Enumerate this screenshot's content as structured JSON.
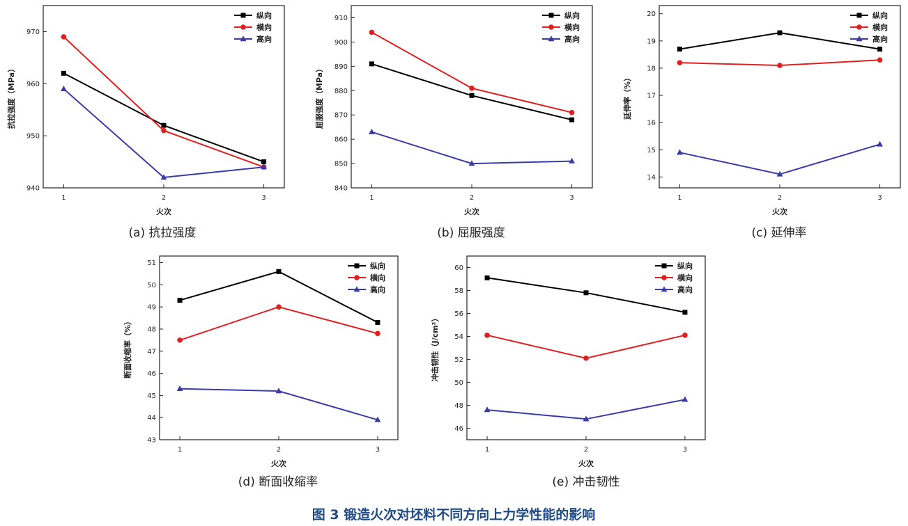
{
  "figure_caption": "图 3 锻造火次对坯料不同方向上力学性能的影响",
  "legend": [
    "纵向",
    "横向",
    "高向"
  ],
  "colors": {
    "纵向": "#000000",
    "横向": "#e02020",
    "高向": "#3a3aa8"
  },
  "chart_data": [
    {
      "type": "line",
      "caption": "(a) 抗拉强度",
      "xlabel": "火次",
      "ylabel": "抗拉强度（MPa）",
      "x": [
        1,
        2,
        3
      ],
      "x_ticks": [
        "1",
        "2",
        "3"
      ],
      "ylim": [
        940,
        975
      ],
      "y_ticks": [
        940,
        950,
        960,
        970
      ],
      "legend_position": "top-right",
      "series": [
        {
          "name": "纵向",
          "marker": "square",
          "values": [
            962,
            952,
            945
          ]
        },
        {
          "name": "横向",
          "marker": "circle",
          "values": [
            969,
            951,
            944
          ]
        },
        {
          "name": "高向",
          "marker": "triangle",
          "values": [
            959,
            942,
            944
          ]
        }
      ]
    },
    {
      "type": "line",
      "caption": "(b) 屈服强度",
      "xlabel": "火次",
      "ylabel": "屈服强度（MPa）",
      "x": [
        1,
        2,
        3
      ],
      "x_ticks": [
        "1",
        "2",
        "3"
      ],
      "ylim": [
        840,
        915
      ],
      "y_ticks": [
        840,
        850,
        860,
        870,
        880,
        890,
        900,
        910
      ],
      "legend_position": "top-right",
      "series": [
        {
          "name": "纵向",
          "marker": "square",
          "values": [
            891,
            878,
            868
          ]
        },
        {
          "name": "横向",
          "marker": "circle",
          "values": [
            904,
            881,
            871
          ]
        },
        {
          "name": "高向",
          "marker": "triangle",
          "values": [
            863,
            850,
            851
          ]
        }
      ]
    },
    {
      "type": "line",
      "caption": "(c) 延伸率",
      "xlabel": "火次",
      "ylabel": "延伸率（%）",
      "x": [
        1,
        2,
        3
      ],
      "x_ticks": [
        "1",
        "2",
        "3"
      ],
      "ylim": [
        13.6,
        20.3
      ],
      "y_ticks": [
        14,
        15,
        16,
        17,
        18,
        19,
        20
      ],
      "legend_position": "top-right",
      "series": [
        {
          "name": "纵向",
          "marker": "square",
          "values": [
            18.7,
            19.3,
            18.7
          ]
        },
        {
          "name": "横向",
          "marker": "circle",
          "values": [
            18.2,
            18.1,
            18.3
          ]
        },
        {
          "name": "高向",
          "marker": "triangle",
          "values": [
            14.9,
            14.1,
            15.2
          ]
        }
      ]
    },
    {
      "type": "line",
      "caption": "(d) 断面收缩率",
      "xlabel": "火次",
      "ylabel": "断面收缩率（%）",
      "x": [
        1,
        2,
        3
      ],
      "x_ticks": [
        "1",
        "2",
        "3"
      ],
      "ylim": [
        43,
        51.3
      ],
      "y_ticks": [
        43,
        44,
        45,
        46,
        47,
        48,
        49,
        50,
        51
      ],
      "legend_position": "top-right",
      "series": [
        {
          "name": "纵向",
          "marker": "square",
          "values": [
            49.3,
            50.6,
            48.3
          ]
        },
        {
          "name": "横向",
          "marker": "circle",
          "values": [
            47.5,
            49.0,
            47.8
          ]
        },
        {
          "name": "高向",
          "marker": "triangle",
          "values": [
            45.3,
            45.2,
            43.9
          ]
        }
      ]
    },
    {
      "type": "line",
      "caption": "(e) 冲击韧性",
      "xlabel": "火次",
      "ylabel": "冲击韧性（J/cm²）",
      "x": [
        1,
        2,
        3
      ],
      "x_ticks": [
        "1",
        "2",
        "3"
      ],
      "ylim": [
        45,
        61
      ],
      "y_ticks": [
        46,
        48,
        50,
        52,
        54,
        56,
        58,
        60
      ],
      "legend_position": "top-right",
      "series": [
        {
          "name": "纵向",
          "marker": "square",
          "values": [
            59.1,
            57.8,
            56.1
          ]
        },
        {
          "name": "横向",
          "marker": "circle",
          "values": [
            54.1,
            52.1,
            54.1
          ]
        },
        {
          "name": "高向",
          "marker": "triangle",
          "values": [
            47.6,
            46.8,
            48.5
          ]
        }
      ]
    }
  ]
}
